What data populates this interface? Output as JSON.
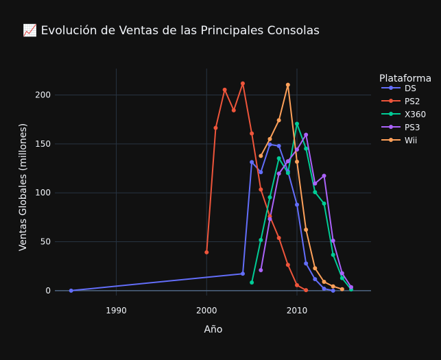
{
  "chart_data": {
    "type": "line",
    "title": "📈 Evolución de Ventas de las Principales Consolas",
    "xlabel": "Año",
    "ylabel": "Ventas Globales (millones)",
    "xlim": [
      1983.2,
      2018.2
    ],
    "ylim": [
      -5,
      227
    ],
    "xticks": [
      1990,
      2000,
      2010
    ],
    "yticks": [
      0,
      50,
      100,
      150,
      200
    ],
    "grid": true,
    "legend": {
      "title": "Plataforma",
      "placement": "top-right"
    },
    "series": [
      {
        "name": "DS",
        "color": "#636efa",
        "x": [
          1985,
          2004,
          2005,
          2006,
          2007,
          2008,
          2009,
          2010,
          2011,
          2012,
          2013,
          2014
        ],
        "y": [
          0.02,
          17.3,
          131.4,
          121.1,
          149.4,
          147.9,
          121.9,
          87.9,
          27.8,
          11.7,
          2.0,
          0.02
        ]
      },
      {
        "name": "PS2",
        "color": "#ef553b",
        "x": [
          2000,
          2001,
          2002,
          2003,
          2004,
          2005,
          2006,
          2007,
          2008,
          2009,
          2010,
          2011
        ],
        "y": [
          39.2,
          166.4,
          205.4,
          184.3,
          211.8,
          160.7,
          103.4,
          75.9,
          53.9,
          26.4,
          5.6,
          0.5
        ]
      },
      {
        "name": "X360",
        "color": "#00cc96",
        "x": [
          2005,
          2006,
          2007,
          2008,
          2009,
          2010,
          2011,
          2012,
          2013,
          2014,
          2015,
          2016
        ],
        "y": [
          8.3,
          51.8,
          95.4,
          135.3,
          120.3,
          170.6,
          145.2,
          100.7,
          89.0,
          36.6,
          12.8,
          1.2
        ]
      },
      {
        "name": "PS3",
        "color": "#ab63fa",
        "x": [
          2006,
          2007,
          2008,
          2009,
          2010,
          2011,
          2012,
          2013,
          2014,
          2015,
          2016
        ],
        "y": [
          20.9,
          73.2,
          119.7,
          132.3,
          144.2,
          159.4,
          109.5,
          117.4,
          51.1,
          17.8,
          3.6
        ]
      },
      {
        "name": "Wii",
        "color": "#ffa15a",
        "x": [
          2006,
          2007,
          2008,
          2009,
          2010,
          2011,
          2012,
          2013,
          2014,
          2015
        ],
        "y": [
          137.7,
          155.0,
          174.2,
          210.4,
          131.8,
          62.3,
          22.9,
          9.0,
          4.4,
          1.5
        ]
      }
    ]
  }
}
